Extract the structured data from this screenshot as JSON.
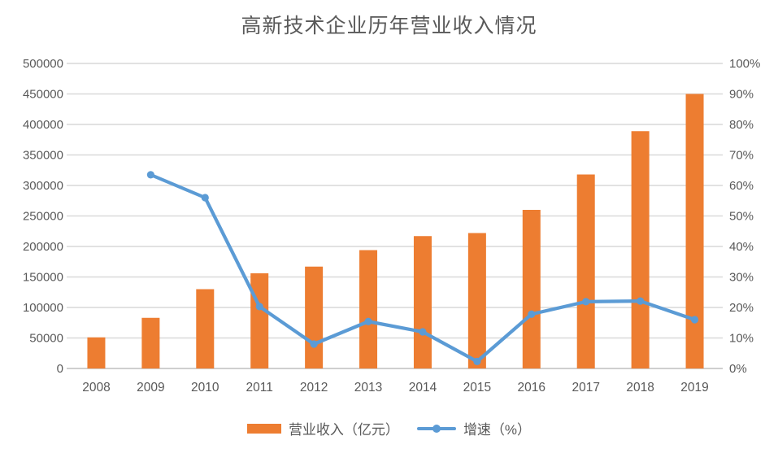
{
  "title": "高新技术企业历年营业收入情况",
  "legend": [
    {
      "label": "营业收入（亿元）",
      "marker": "bar-swatch"
    },
    {
      "label": "增速（%）",
      "marker": "line-swatch"
    }
  ],
  "colors": {
    "bar": "#ED7D31",
    "line": "#5B9BD5",
    "grid": "#D9D9D9",
    "axis_line": "#BFBFBF",
    "text": "#595959",
    "background": "#FFFFFF"
  },
  "chart_data": {
    "type": "bar",
    "title": "高新技术企业历年营业收入情况",
    "categories": [
      "2008",
      "2009",
      "2010",
      "2011",
      "2012",
      "2013",
      "2014",
      "2015",
      "2016",
      "2017",
      "2018",
      "2019"
    ],
    "series": [
      {
        "name": "营业收入（亿元）",
        "type": "bar",
        "axis": "left",
        "color": "#ED7D31",
        "values": [
          51000,
          83000,
          130000,
          156000,
          167000,
          194000,
          217000,
          222000,
          260000,
          318000,
          389000,
          450000
        ]
      },
      {
        "name": "增速（%）",
        "type": "line",
        "axis": "right",
        "color": "#5B9BD5",
        "values": [
          null,
          63.5,
          56,
          20.3,
          8,
          15.4,
          12,
          2.3,
          17.8,
          21.9,
          22.1,
          16
        ]
      }
    ],
    "xlabel": "",
    "ylabel_left": "",
    "ylabel_right": "",
    "axes": {
      "left": {
        "min": 0,
        "max": 500000,
        "step": 50000,
        "tick_labels": [
          "0",
          "50000",
          "100000",
          "150000",
          "200000",
          "250000",
          "300000",
          "350000",
          "400000",
          "450000",
          "500000"
        ]
      },
      "right": {
        "min": 0,
        "max": 100,
        "step": 10,
        "tick_labels": [
          "0%",
          "10%",
          "20%",
          "30%",
          "40%",
          "50%",
          "60%",
          "70%",
          "80%",
          "90%",
          "100%"
        ]
      }
    },
    "grid": true,
    "legend_position": "bottom"
  }
}
